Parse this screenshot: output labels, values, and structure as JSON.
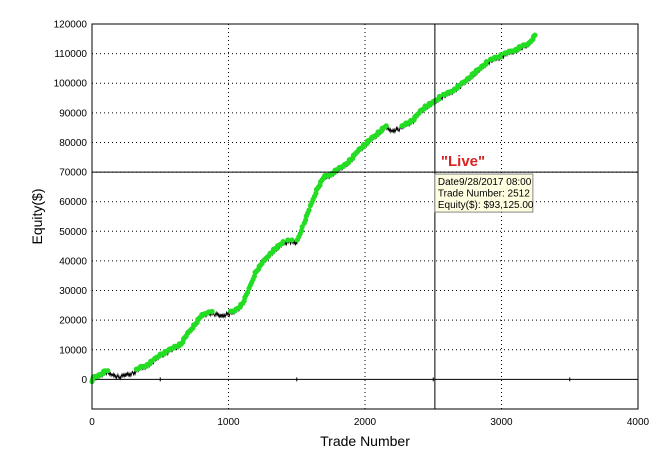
{
  "chart_data": {
    "type": "line",
    "xlabel": "Trade Number",
    "ylabel": "Equity($)",
    "xlim": [
      0,
      4000
    ],
    "ylim": [
      -10000,
      120000
    ],
    "x_ticks": [
      0,
      1000,
      2000,
      3000,
      4000
    ],
    "y_ticks": [
      0,
      10000,
      20000,
      30000,
      40000,
      50000,
      60000,
      70000,
      80000,
      90000,
      100000,
      110000,
      120000
    ],
    "grid": true,
    "colors": {
      "equity_line": "#000000",
      "new_high_marker": "#22dd22",
      "annotation": "#dd2222",
      "tooltip_bg": "#fffde0",
      "crosshair": "#000000"
    },
    "series": [
      {
        "x": [
          0,
          50,
          100,
          150,
          200,
          250,
          300,
          350,
          400,
          450,
          500,
          550,
          600,
          650,
          700,
          750,
          800,
          850,
          900,
          950,
          1000,
          1050,
          1100,
          1150,
          1200,
          1250,
          1300,
          1350,
          1400,
          1450,
          1500,
          1550,
          1600,
          1650,
          1700,
          1750,
          1800,
          1850,
          1900,
          1950,
          2000,
          2050,
          2100,
          2150,
          2200,
          2250,
          2300,
          2350,
          2400,
          2450,
          2500,
          2550,
          2600,
          2650,
          2700,
          2750,
          2800,
          2850,
          2900,
          2950,
          3000,
          3050,
          3100,
          3150,
          3200,
          3250
        ],
        "y": [
          0,
          1000,
          2500,
          1500,
          800,
          1500,
          2000,
          3500,
          4500,
          6000,
          8000,
          9000,
          10500,
          11500,
          15000,
          18000,
          21000,
          22500,
          22000,
          21500,
          22000,
          23000,
          25000,
          30000,
          36000,
          39000,
          42000,
          44000,
          46000,
          46500,
          46000,
          52000,
          58000,
          64000,
          68000,
          69000,
          70500,
          72000,
          74000,
          77000,
          79000,
          81000,
          83000,
          85000,
          84000,
          84500,
          86000,
          87000,
          90000,
          92000,
          93125,
          95000,
          96000,
          97500,
          99000,
          101000,
          103000,
          105000,
          107000,
          108000,
          109000,
          110000,
          111000,
          112000,
          113000,
          116000
        ]
      }
    ],
    "annotations": {
      "live_label": "\"Live\"",
      "crosshair": {
        "x": 2512,
        "y": 70000
      },
      "tooltip": {
        "line1": "Date9/28/2017 08:00",
        "line2": "Trade Number: 2512",
        "line3": "Equity($): $93,125.00"
      }
    }
  }
}
